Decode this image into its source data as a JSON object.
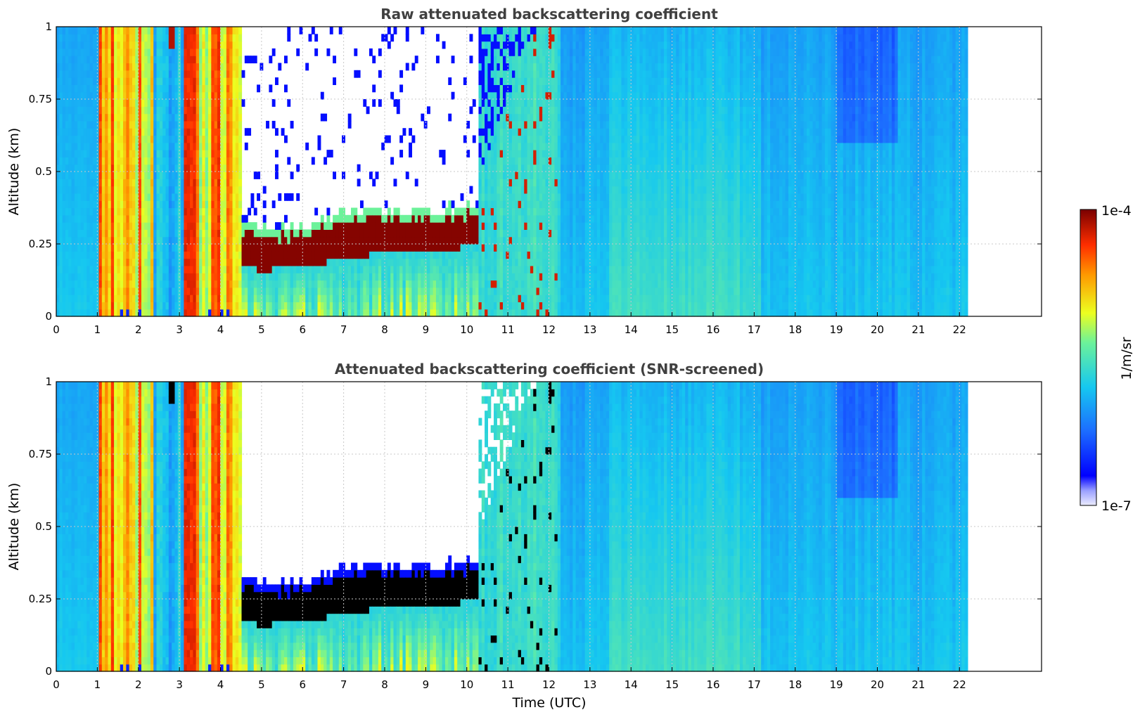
{
  "chart_data": [
    {
      "type": "heatmap",
      "title": "Raw attenuated backscattering coefficient",
      "xlabel": "",
      "ylabel": "Altitude (km)",
      "xlim": [
        0,
        24
      ],
      "ylim": [
        0,
        1
      ],
      "x_ticks": [
        "0",
        "1",
        "2",
        "3",
        "4",
        "5",
        "6",
        "7",
        "8",
        "9",
        "10",
        "11",
        "12",
        "13",
        "14",
        "15",
        "16",
        "17",
        "18",
        "19",
        "20",
        "21",
        "22"
      ],
      "y_ticks": [
        "0",
        "0.25",
        "0.5",
        "0.75",
        "1"
      ],
      "grid": true,
      "data_end_hour": 22.2,
      "variant": "raw",
      "features": {
        "cloud_layer_base_km": [
          {
            "t": 4.6,
            "h": 0.17
          },
          {
            "t": 5,
            "h": 0.16
          },
          {
            "t": 6,
            "h": 0.17
          },
          {
            "t": 7,
            "h": 0.2
          },
          {
            "t": 8,
            "h": 0.22
          },
          {
            "t": 9,
            "h": 0.22
          },
          {
            "t": 10,
            "h": 0.24
          }
        ],
        "cloud_layer_top_km": [
          {
            "t": 4.6,
            "h": 0.3
          },
          {
            "t": 5,
            "h": 0.28
          },
          {
            "t": 6,
            "h": 0.28
          },
          {
            "t": 7,
            "h": 0.33
          },
          {
            "t": 8,
            "h": 0.34
          },
          {
            "t": 9,
            "h": 0.33
          },
          {
            "t": 10,
            "h": 0.35
          }
        ],
        "precip_periods_utc": [
          [
            1.0,
            2.4
          ],
          [
            3.1,
            4.5
          ]
        ]
      }
    },
    {
      "type": "heatmap",
      "title": "Attenuated backscattering coefficient (SNR-screened)",
      "xlabel": "Time (UTC)",
      "ylabel": "Altitude (km)",
      "xlim": [
        0,
        24
      ],
      "ylim": [
        0,
        1
      ],
      "x_ticks": [
        "0",
        "1",
        "2",
        "3",
        "4",
        "5",
        "6",
        "7",
        "8",
        "9",
        "10",
        "11",
        "12",
        "13",
        "14",
        "15",
        "16",
        "17",
        "18",
        "19",
        "20",
        "21",
        "22"
      ],
      "y_ticks": [
        "0",
        "0.25",
        "0.5",
        "0.75",
        "1"
      ],
      "grid": true,
      "data_end_hour": 22.2,
      "variant": "screened"
    }
  ],
  "colorbar": {
    "label": "1/m/sr",
    "min_label": "1e-7",
    "max_label": "1e-4",
    "scale": "log",
    "colormap": "jet-like"
  }
}
